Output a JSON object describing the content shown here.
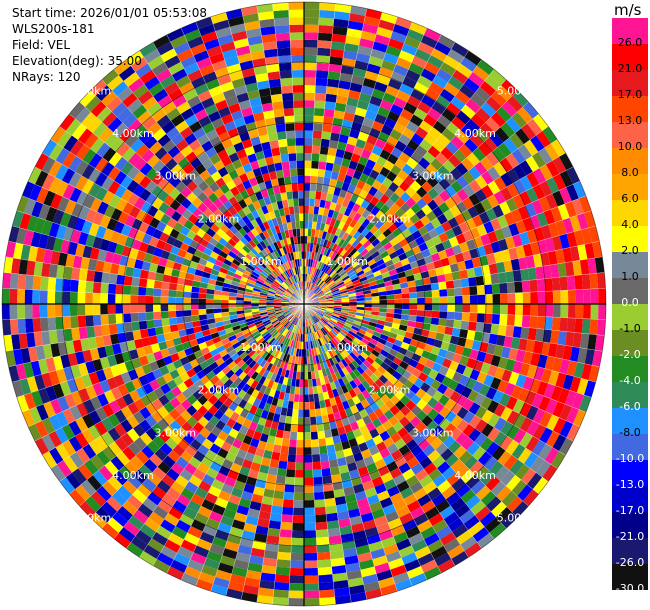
{
  "info": {
    "start_time": "Start time: 2026/01/01 05:53:08",
    "radar": "WLS200s-181",
    "field": "Field: VEL",
    "elevation": "Elevation(deg): 35.00",
    "nrays": "NRays: 120"
  },
  "colorbar": {
    "unit": "m/s",
    "levels": [
      {
        "label": "26.0",
        "color": "#ff1493"
      },
      {
        "label": "21.0",
        "color": "#ff0000"
      },
      {
        "label": "17.0",
        "color": "#e8191c"
      },
      {
        "label": "13.0",
        "color": "#ff4500"
      },
      {
        "label": "10.0",
        "color": "#ff6347"
      },
      {
        "label": "8.0",
        "color": "#ff8c00"
      },
      {
        "label": "6.0",
        "color": "#ffa500"
      },
      {
        "label": "4.0",
        "color": "#ffd700"
      },
      {
        "label": "2.0",
        "color": "#ffff00"
      },
      {
        "label": "1.0",
        "color": "#778899"
      },
      {
        "label": "0.0",
        "color": "#696969"
      },
      {
        "label": "-1.0",
        "color": "#9acd32"
      },
      {
        "label": "-2.0",
        "color": "#6b8e23"
      },
      {
        "label": "-4.0",
        "color": "#228b22"
      },
      {
        "label": "-6.0",
        "color": "#2e8b57"
      },
      {
        "label": "-8.0",
        "color": "#1e90ff"
      },
      {
        "label": "-10.0",
        "color": "#4169e1"
      },
      {
        "label": "-13.0",
        "color": "#0000ff"
      },
      {
        "label": "-17.0",
        "color": "#0000cd"
      },
      {
        "label": "-21.0",
        "color": "#00008b"
      },
      {
        "label": "-26.0",
        "color": "#191970"
      },
      {
        "label": "-30.0",
        "color": "#111111"
      }
    ]
  },
  "range_rings": {
    "labels": [
      "1.00km",
      "2.00km",
      "3.00km",
      "4.00km",
      "5.00km"
    ]
  }
}
